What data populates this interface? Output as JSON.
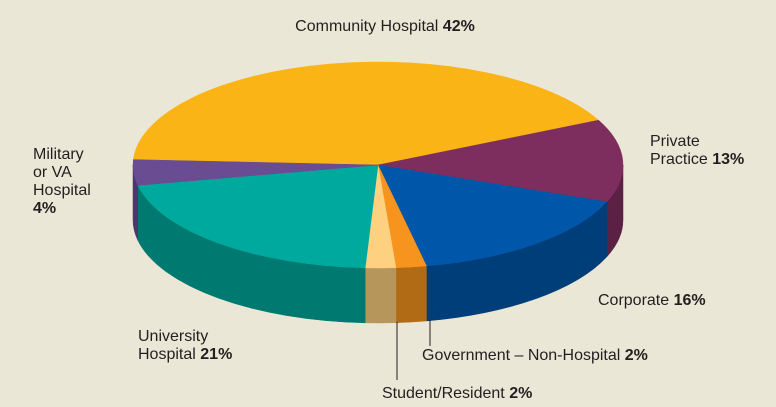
{
  "chart_data": {
    "type": "pie",
    "categories": [
      "Community Hospital",
      "Private Practice",
      "Corporate",
      "Government – Non-Hospital",
      "Student/Resident",
      "University Hospital",
      "Military or VA Hospital"
    ],
    "values": [
      42,
      13,
      16,
      2,
      2,
      21,
      4
    ],
    "value_labels": [
      "42%",
      "13%",
      "16%",
      "2%",
      "2%",
      "21%",
      "4%"
    ],
    "colors": [
      "#fbb416",
      "#7e2e5e",
      "#0056a8",
      "#f7941d",
      "#fdd17f",
      "#00a99d",
      "#6a4c93"
    ]
  }
}
